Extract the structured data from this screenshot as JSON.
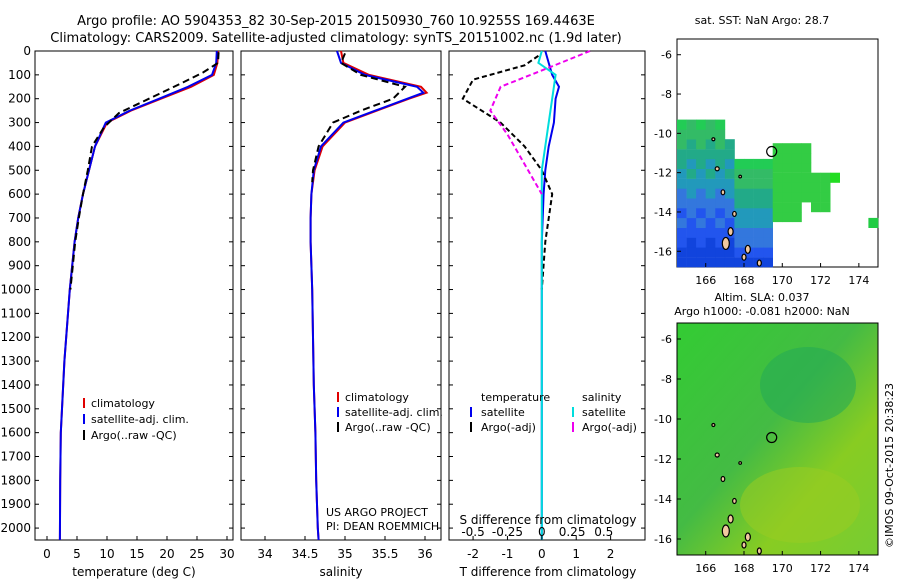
{
  "header": {
    "line1": "Argo profile: AO 5904353_82 30-Sep-2015 20150930_760 10.9255S 169.4463E",
    "line2": "Climatology: CARS2009. Satellite-adjusted climatology: synTS_20151002.nc (1.9d later)"
  },
  "credit": "©IMOS 09-Oct-2015 20:38:23",
  "project": {
    "line1": "US ARGO PROJECT",
    "line2": "PI: DEAN ROEMMICH"
  },
  "colors": {
    "climatology": "#e00000",
    "satellite": "#0000ee",
    "argo": "#000000",
    "s_sat": "#00dddd",
    "s_argo": "#ee00ee"
  },
  "chart_data": [
    {
      "type": "line",
      "xlabel": "temperature (deg C)",
      "ylabel": "",
      "xlim": [
        -2,
        31
      ],
      "ylim": [
        2050,
        0
      ],
      "xticks": [
        0,
        5,
        10,
        15,
        20,
        25,
        30
      ],
      "yticks": [
        0,
        100,
        200,
        300,
        400,
        500,
        600,
        700,
        800,
        900,
        1000,
        1100,
        1200,
        1300,
        1400,
        1500,
        1600,
        1700,
        1800,
        1900,
        2000
      ],
      "legend": [
        "climatology",
        "satellite-adj. clim.",
        "Argo(..raw -QC)"
      ],
      "series": [
        {
          "name": "climatology",
          "x": [
            28.5,
            28.4,
            27.8,
            24,
            19,
            14,
            10,
            8,
            7,
            6,
            5.2,
            4.6,
            4.2,
            3.8,
            3.5,
            3.2,
            2.9,
            2.7,
            2.5,
            2.3,
            2.2,
            2.15
          ],
          "y": [
            0,
            50,
            100,
            150,
            200,
            250,
            300,
            400,
            500,
            600,
            700,
            800,
            900,
            1000,
            1100,
            1200,
            1300,
            1400,
            1500,
            1600,
            1800,
            2050
          ]
        },
        {
          "name": "satellite-adj. clim.",
          "x": [
            28.3,
            28.2,
            27.5,
            23.5,
            18.7,
            13.8,
            9.8,
            8,
            7,
            6,
            5.2,
            4.6,
            4.2,
            3.8,
            3.5,
            3.2,
            2.9,
            2.7,
            2.5,
            2.3,
            2.2,
            2.15
          ],
          "y": [
            0,
            50,
            100,
            150,
            200,
            250,
            300,
            400,
            500,
            600,
            700,
            800,
            900,
            1000,
            1100,
            1200,
            1300,
            1400,
            1500,
            1600,
            1800,
            2050
          ]
        },
        {
          "name": "Argo(..raw -QC)",
          "x": [
            28.6,
            28.5,
            26,
            22,
            17,
            12,
            9.5,
            7.5,
            6.8,
            6,
            5.3,
            4.7,
            4.3,
            3.9
          ],
          "y": [
            5,
            50,
            90,
            140,
            200,
            260,
            320,
            400,
            500,
            600,
            700,
            800,
            900,
            1000
          ]
        }
      ]
    },
    {
      "type": "line",
      "xlabel": "salinity",
      "ylabel": "",
      "xlim": [
        33.7,
        36.2
      ],
      "ylim": [
        2050,
        0
      ],
      "xticks": [
        34,
        34.5,
        35,
        35.5,
        36
      ],
      "legend": [
        "climatology",
        "satellite-adj. clim.",
        "Argo(..raw -QC)"
      ],
      "series": [
        {
          "name": "climatology",
          "x": [
            34.95,
            34.98,
            35.3,
            35.95,
            36.02,
            35.8,
            35.4,
            35.0,
            34.72,
            34.62,
            34.58,
            34.57,
            34.57,
            34.58,
            34.59,
            34.6,
            34.61,
            34.62,
            34.63,
            34.64,
            34.66,
            34.67
          ],
          "y": [
            0,
            50,
            100,
            150,
            175,
            200,
            250,
            300,
            400,
            500,
            600,
            700,
            800,
            900,
            1000,
            1200,
            1400,
            1500,
            1600,
            1800,
            2000,
            2050
          ]
        },
        {
          "name": "satellite-adj. clim.",
          "x": [
            34.9,
            34.95,
            35.25,
            35.9,
            35.98,
            35.78,
            35.38,
            34.98,
            34.7,
            34.61,
            34.58,
            34.57,
            34.57,
            34.58,
            34.59,
            34.6,
            34.61,
            34.62,
            34.63,
            34.64,
            34.66,
            34.67
          ],
          "y": [
            0,
            50,
            100,
            150,
            175,
            200,
            250,
            300,
            400,
            500,
            600,
            700,
            800,
            900,
            1000,
            1200,
            1400,
            1500,
            1600,
            1800,
            2000,
            2050
          ]
        },
        {
          "name": "Argo(..raw -QC)",
          "x": [
            35.0,
            34.95,
            35.2,
            35.75,
            35.6,
            35.2,
            34.85,
            34.67,
            34.6,
            34.59
          ],
          "y": [
            10,
            50,
            100,
            150,
            200,
            250,
            300,
            400,
            500,
            550
          ]
        }
      ]
    },
    {
      "type": "line",
      "xlabel": "T difference from climatology",
      "ylabel": "",
      "xlim": [
        -2.7,
        3.0
      ],
      "ylim": [
        2050,
        0
      ],
      "xticks": [
        -2,
        -1,
        0,
        1,
        2
      ],
      "xlabel_top": "S difference from climatology",
      "xticks_top": [
        "-0.5",
        "-0.25",
        "0",
        "0.25",
        "0.5"
      ],
      "legend": [
        "temperature",
        "satellite",
        "Argo(-adj)",
        "salinity",
        "satellite",
        "Argo(-adj)"
      ],
      "series": [
        {
          "name": "satellite",
          "x": [
            0.1,
            0.2,
            0.3,
            0.5,
            0.4,
            0.35,
            0.2,
            0.1,
            0.05,
            0.0,
            0.0,
            0.0
          ],
          "y": [
            0,
            50,
            100,
            150,
            200,
            300,
            400,
            500,
            600,
            800,
            1200,
            2050
          ]
        },
        {
          "name": "Argo(-adj)",
          "x": [
            -0.1,
            -0.5,
            -2,
            -2.3,
            -1.2,
            -0.5,
            0.0,
            0.3,
            0.1,
            0.0
          ],
          "y": [
            20,
            60,
            120,
            200,
            300,
            400,
            500,
            600,
            800,
            1000
          ]
        },
        {
          "name": "satellite",
          "x": [
            0.0,
            -0.1,
            0.4,
            0.3,
            0.2,
            0.0,
            0.0,
            0.0
          ],
          "y": [
            0,
            50,
            100,
            200,
            300,
            500,
            1200,
            2050
          ]
        },
        {
          "name": "Argo(-adj)",
          "x": [
            1.4,
            0.2,
            -1.2,
            -1.5,
            -1.0,
            -0.4,
            0.0
          ],
          "y": [
            0,
            70,
            150,
            250,
            350,
            500,
            600
          ]
        }
      ]
    },
    {
      "type": "heatmap",
      "title": "sat. SST: NaN Argo: 28.7",
      "xlim": [
        164.5,
        175
      ],
      "ylim": [
        -16.8,
        -5.2
      ],
      "xticks": [
        166,
        168,
        170,
        172,
        174
      ],
      "yticks": [
        -6,
        -8,
        -10,
        -12,
        -14,
        -16
      ],
      "marker": {
        "lon": 169.4463,
        "lat": -10.9255
      }
    },
    {
      "type": "heatmap",
      "title": "Altim. SLA: 0.037",
      "subtitle": "Argo h1000: -0.081 h2000: NaN",
      "xlim": [
        164.5,
        175
      ],
      "ylim": [
        -16.8,
        -5.2
      ],
      "xticks": [
        166,
        168,
        170,
        172,
        174
      ],
      "yticks": [
        -6,
        -8,
        -10,
        -12,
        -14,
        -16
      ],
      "marker": {
        "lon": 169.4463,
        "lat": -10.9255
      }
    }
  ]
}
